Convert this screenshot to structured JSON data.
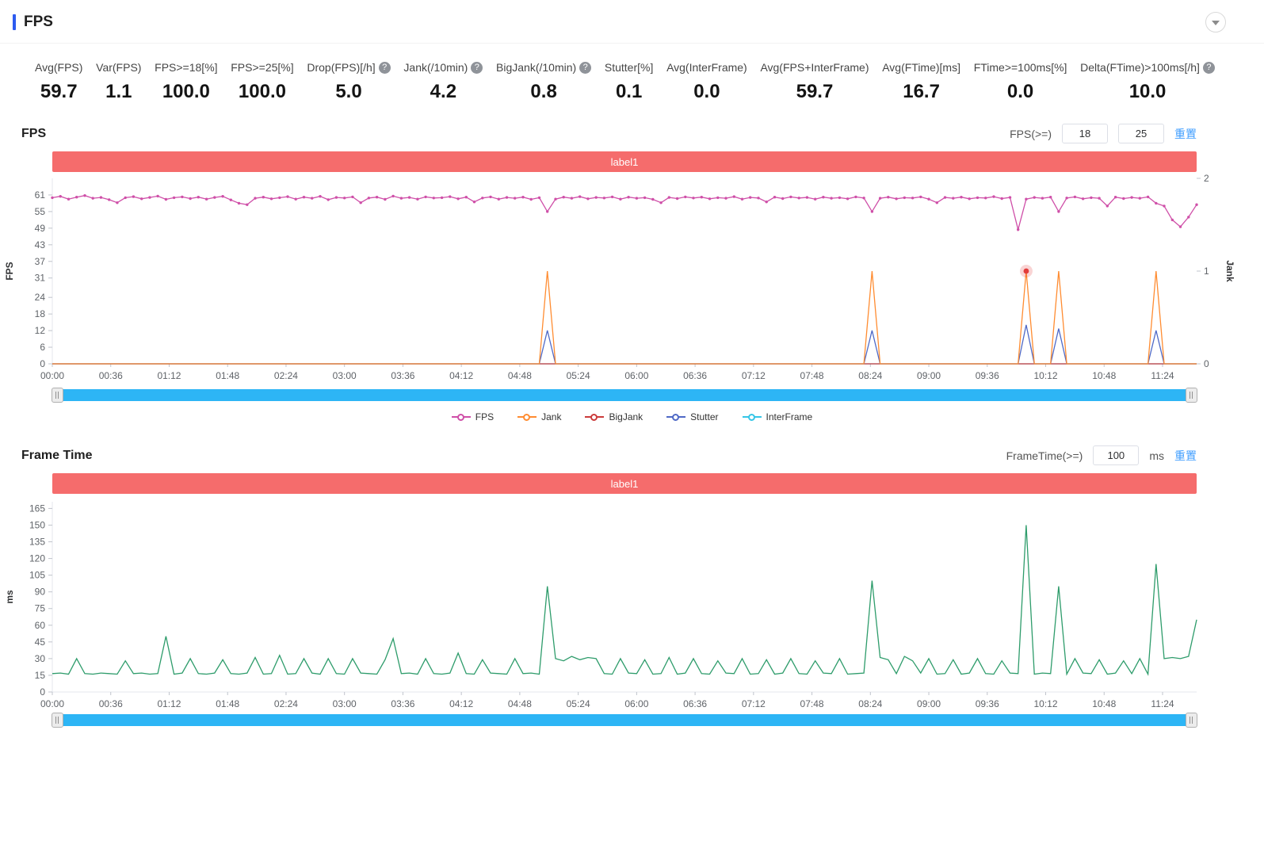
{
  "header": {
    "title": "FPS"
  },
  "metrics": [
    {
      "label": "Avg(FPS)",
      "value": "59.7",
      "help": false
    },
    {
      "label": "Var(FPS)",
      "value": "1.1",
      "help": false
    },
    {
      "label": "FPS>=18[%]",
      "value": "100.0",
      "help": false
    },
    {
      "label": "FPS>=25[%]",
      "value": "100.0",
      "help": false
    },
    {
      "label": "Drop(FPS)[/h]",
      "value": "5.0",
      "help": true
    },
    {
      "label": "Jank(/10min)",
      "value": "4.2",
      "help": true
    },
    {
      "label": "BigJank(/10min)",
      "value": "0.8",
      "help": true
    },
    {
      "label": "Stutter[%]",
      "value": "0.1",
      "help": false
    },
    {
      "label": "Avg(InterFrame)",
      "value": "0.0",
      "help": false
    },
    {
      "label": "Avg(FPS+InterFrame)",
      "value": "59.7",
      "help": false
    },
    {
      "label": "Avg(FTime)[ms]",
      "value": "16.7",
      "help": false
    },
    {
      "label": "FTime>=100ms[%]",
      "value": "0.0",
      "help": false
    },
    {
      "label": "Delta(FTime)>100ms[/h]",
      "value": "10.0",
      "help": true
    }
  ],
  "fps_section": {
    "title": "FPS",
    "filter_label": "FPS(>=)",
    "input_low": "18",
    "input_high": "25",
    "reset_label": "重置",
    "banner_label": "label1"
  },
  "frametime_section": {
    "title": "Frame Time",
    "filter_label": "FrameTime(>=)",
    "input_value": "100",
    "unit_label": "ms",
    "reset_label": "重置",
    "banner_label": "label1"
  },
  "colors": {
    "accent": "#2d5bf0",
    "banner": "#f56c6c",
    "scrollbar": "#2db5f5",
    "link": "#409eff",
    "help_bg": "#8f9399"
  },
  "chart_data": [
    {
      "type": "line",
      "title": "FPS",
      "x_tick_labels": [
        "00:00",
        "00:36",
        "01:12",
        "01:48",
        "02:24",
        "03:00",
        "03:36",
        "04:12",
        "04:48",
        "05:24",
        "06:00",
        "06:36",
        "07:12",
        "07:48",
        "08:24",
        "09:00",
        "09:36",
        "10:12",
        "10:48",
        "11:24"
      ],
      "x_tick_seconds": [
        0,
        36,
        72,
        108,
        144,
        180,
        216,
        252,
        288,
        324,
        360,
        396,
        432,
        468,
        504,
        540,
        576,
        612,
        648,
        684
      ],
      "x_step_seconds": 5,
      "x_max_seconds": 705,
      "point_count": 142,
      "left_axis": {
        "name": "FPS",
        "ticks": [
          0,
          6,
          12,
          18,
          24,
          31,
          37,
          43,
          49,
          55,
          61
        ],
        "max": 67
      },
      "right_axis": {
        "name": "Jank",
        "ticks": [
          0,
          1,
          2
        ],
        "max": 2
      },
      "draw_order": [
        4,
        2,
        3,
        1,
        0
      ],
      "highlight": {
        "series": "Jank",
        "index": 120
      },
      "series": [
        {
          "name": "FPS",
          "color": "#cf4fa8",
          "axis": "left",
          "symbols": true,
          "values": [
            60,
            60.5,
            59.5,
            60.2,
            60.8,
            59.8,
            60.1,
            59.3,
            58.2,
            60,
            60.4,
            59.6,
            60.1,
            60.6,
            59.4,
            60,
            60.3,
            59.7,
            60.2,
            59.5,
            60.1,
            60.5,
            59.2,
            58,
            57.5,
            59.8,
            60.2,
            59.6,
            60,
            60.4,
            59.5,
            60.2,
            59.8,
            60.5,
            59.3,
            60.1,
            59.9,
            60.3,
            58.2,
            59.9,
            60.2,
            59.4,
            60.6,
            59.8,
            60.1,
            59.5,
            60.3,
            59.9,
            60,
            60.4,
            59.6,
            60.2,
            58.5,
            59.9,
            60.3,
            59.5,
            60.1,
            59.8,
            60.2,
            59.4,
            60,
            55,
            59.5,
            60.2,
            59.8,
            60.4,
            59.6,
            60.1,
            59.9,
            60.3,
            59.5,
            60.2,
            59.8,
            60,
            59.4,
            58.2,
            60.1,
            59.7,
            60.3,
            59.9,
            60.2,
            59.6,
            60,
            59.8,
            60.4,
            59.5,
            60.1,
            59.9,
            58.5,
            60.2,
            59.7,
            60.3,
            59.9,
            60.1,
            59.5,
            60.2,
            59.8,
            60,
            59.6,
            60.3,
            59.9,
            55,
            59.8,
            60.2,
            59.6,
            60,
            59.9,
            60.3,
            59.5,
            58.2,
            60.1,
            59.8,
            60.2,
            59.6,
            60,
            59.9,
            60.4,
            59.7,
            60.1,
            48.5,
            59.5,
            60.1,
            59.8,
            60.2,
            55,
            59.9,
            60.3,
            59.6,
            60,
            59.8,
            57,
            60.2,
            59.7,
            60.1,
            59.8,
            60.3,
            58,
            57,
            52,
            49.5,
            53,
            57.5
          ]
        },
        {
          "name": "Jank",
          "color": "#ff8c31",
          "axis": "right",
          "default": 0,
          "points": [
            [
              61,
              1
            ],
            [
              101,
              1
            ],
            [
              120,
              1
            ],
            [
              124,
              1
            ],
            [
              136,
              1
            ]
          ]
        },
        {
          "name": "BigJank",
          "color": "#cb3b3b",
          "axis": "right",
          "default": 0,
          "points": []
        },
        {
          "name": "Stutter",
          "color": "#4f69c6",
          "axis": "right",
          "default": 0,
          "points": [
            [
              61,
              0.36
            ],
            [
              101,
              0.36
            ],
            [
              120,
              0.42
            ],
            [
              124,
              0.38
            ],
            [
              136,
              0.36
            ]
          ]
        },
        {
          "name": "InterFrame",
          "color": "#36c6e7",
          "axis": "right",
          "default": 0,
          "points": []
        }
      ]
    },
    {
      "type": "line",
      "title": "Frame Time",
      "x_tick_labels": [
        "00:00",
        "00:36",
        "01:12",
        "01:48",
        "02:24",
        "03:00",
        "03:36",
        "04:12",
        "04:48",
        "05:24",
        "06:00",
        "06:36",
        "07:12",
        "07:48",
        "08:24",
        "09:00",
        "09:36",
        "10:12",
        "10:48",
        "11:24"
      ],
      "x_tick_seconds": [
        0,
        36,
        72,
        108,
        144,
        180,
        216,
        252,
        288,
        324,
        360,
        396,
        432,
        468,
        504,
        540,
        576,
        612,
        648,
        684
      ],
      "x_step_seconds": 5,
      "x_max_seconds": 705,
      "point_count": 142,
      "left_axis": {
        "name": "ms",
        "ticks": [
          0,
          15,
          30,
          45,
          60,
          75,
          90,
          105,
          120,
          135,
          150,
          165
        ],
        "max": 171
      },
      "series": [
        {
          "name": "FrameTime",
          "color": "#2e9c6b",
          "axis": "left",
          "values": [
            16.5,
            17,
            16,
            30,
            16.5,
            16,
            17,
            16.5,
            16,
            28,
            16.5,
            17,
            16,
            16.5,
            50,
            16,
            17,
            30,
            16.5,
            16,
            17,
            29,
            16.5,
            16,
            17,
            31,
            16,
            16.5,
            33,
            16,
            16.5,
            30,
            17,
            16,
            30,
            16.5,
            16,
            30,
            17,
            16.5,
            16,
            29,
            48,
            16.5,
            17,
            16,
            30,
            16.5,
            16,
            17,
            35,
            16.5,
            16,
            29,
            17,
            16.5,
            16,
            30,
            16.5,
            17,
            16,
            95,
            30,
            28,
            32,
            29,
            31,
            30,
            16.5,
            16,
            30,
            17,
            16.5,
            29,
            16,
            16.5,
            31,
            16,
            17,
            30,
            16.5,
            16,
            28,
            17,
            16.5,
            30,
            16,
            16.5,
            29,
            16,
            17,
            30,
            16.5,
            16,
            28,
            17,
            16.5,
            30,
            16,
            16.5,
            17,
            100,
            31,
            29,
            16.5,
            32,
            28,
            17,
            30,
            16,
            16.5,
            29,
            16,
            17,
            30,
            16.5,
            16,
            28,
            17,
            16.5,
            150,
            16,
            17,
            16.5,
            95,
            16,
            30,
            17,
            16.5,
            29,
            16,
            17,
            28,
            16.5,
            30,
            16,
            115,
            30,
            31,
            30,
            32,
            65
          ]
        }
      ]
    }
  ]
}
